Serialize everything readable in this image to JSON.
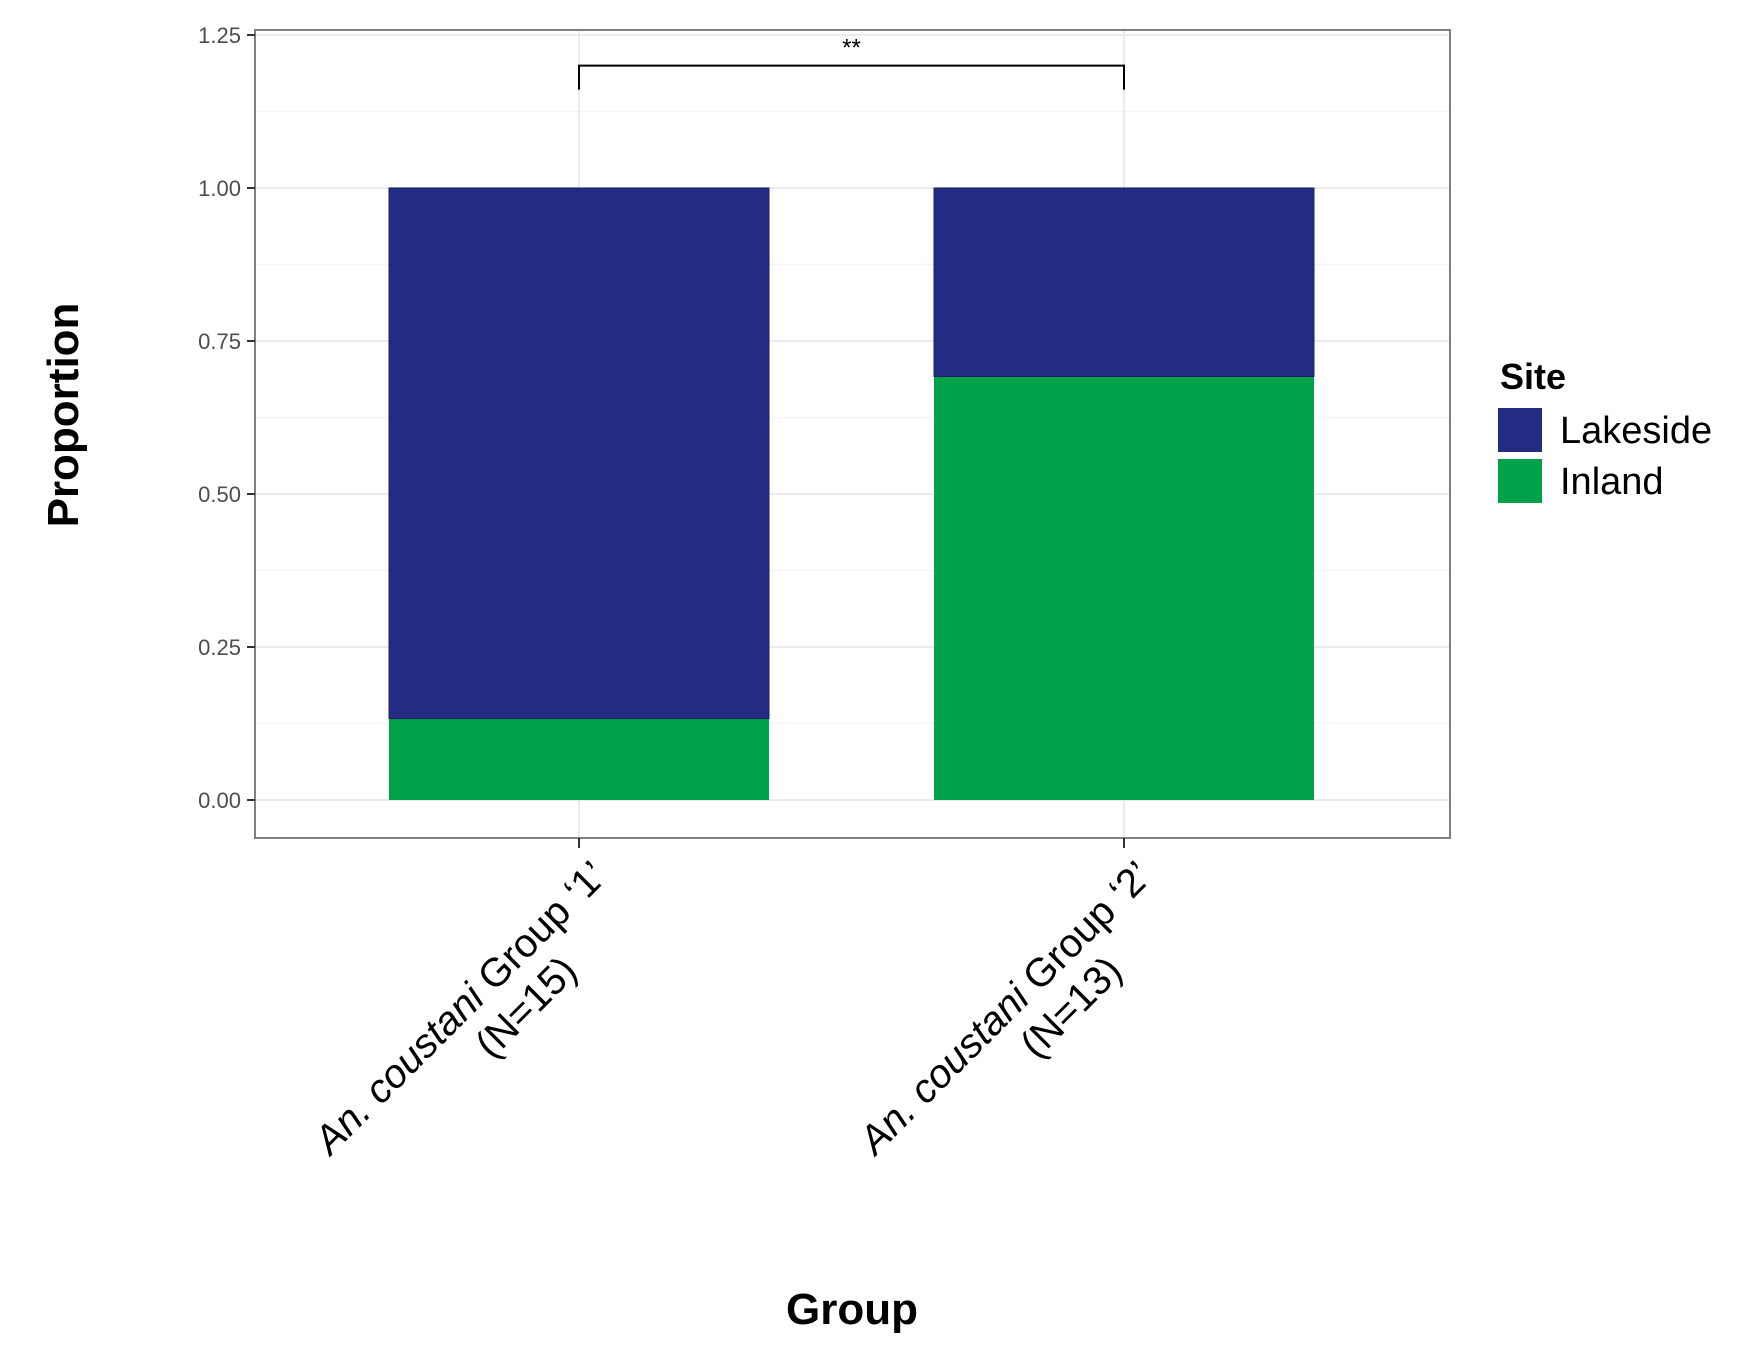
{
  "chart_data": {
    "type": "bar",
    "stacked": true,
    "xlabel": "Group",
    "ylabel": "Proportion",
    "ylim": [
      -0.06,
      1.25
    ],
    "yticks": [
      "0.00",
      "0.25",
      "0.50",
      "0.75",
      "1.00",
      "1.25"
    ],
    "categories": [
      {
        "species": "An. coustani",
        "rest": " Group ‘1’",
        "n": "(N=15)"
      },
      {
        "species": "An. coustani",
        "rest": " Group ‘2’",
        "n": "(N=13)"
      }
    ],
    "series": [
      {
        "name": "Inland",
        "color": "#00a14b",
        "values": [
          0.133,
          0.692
        ]
      },
      {
        "name": "Lakeside",
        "color": "#232c82",
        "values": [
          0.867,
          0.308
        ]
      }
    ],
    "legend": {
      "title": "Site",
      "placement": "right",
      "items": [
        {
          "label": "Lakeside",
          "color": "#232c82"
        },
        {
          "label": "Inland",
          "color": "#00a14b"
        }
      ]
    },
    "significance": {
      "label": "**",
      "between": [
        0,
        1
      ],
      "y": 1.2
    },
    "grid": true
  }
}
